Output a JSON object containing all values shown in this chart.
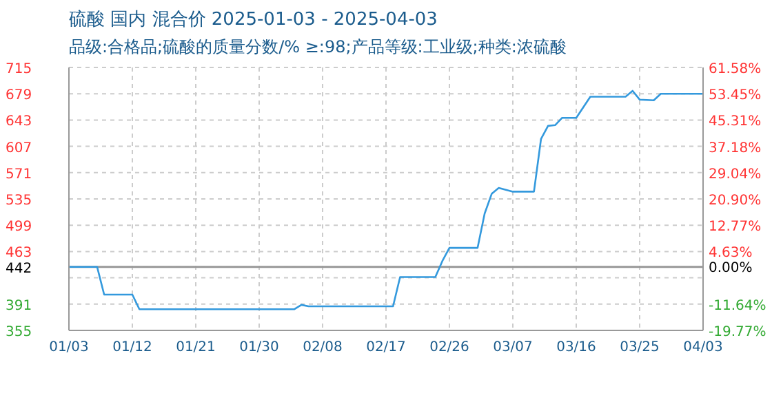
{
  "chart_data": {
    "type": "line",
    "title": "硫酸 国内 混合价 2025-01-03 - 2025-04-03",
    "subtitle": "品级:合格品;硫酸的质量分数/% ≥:98;产品等级:工业级;种类:浓硫酸",
    "x": [
      "2025-01-03",
      "2025-01-07",
      "2025-01-08",
      "2025-01-12",
      "2025-01-13",
      "2025-02-04",
      "2025-02-05",
      "2025-02-06",
      "2025-02-18",
      "2025-02-19",
      "2025-02-24",
      "2025-02-25",
      "2025-02-26",
      "2025-03-02",
      "2025-03-03",
      "2025-03-04",
      "2025-03-05",
      "2025-03-07",
      "2025-03-10",
      "2025-03-11",
      "2025-03-12",
      "2025-03-13",
      "2025-03-14",
      "2025-03-16",
      "2025-03-18",
      "2025-03-23",
      "2025-03-24",
      "2025-03-25",
      "2025-03-27",
      "2025-03-28",
      "2025-04-03"
    ],
    "series": [
      {
        "color": "#3399dd",
        "values": [
          442,
          442,
          404,
          404,
          384,
          384,
          390,
          388,
          388,
          428,
          428,
          450,
          468,
          468,
          515,
          542,
          550,
          545,
          545,
          617,
          635,
          636,
          646,
          646,
          675,
          675,
          683,
          671,
          670,
          679,
          679
        ]
      }
    ],
    "xlim": [
      "2025-01-03",
      "2025-04-03"
    ],
    "xticks": [
      {
        "value": "2025-01-03",
        "label": "01/03"
      },
      {
        "value": "2025-01-12",
        "label": "01/12"
      },
      {
        "value": "2025-01-21",
        "label": "01/21"
      },
      {
        "value": "2025-01-30",
        "label": "01/30"
      },
      {
        "value": "2025-02-08",
        "label": "02/08"
      },
      {
        "value": "2025-02-17",
        "label": "02/17"
      },
      {
        "value": "2025-02-26",
        "label": "02/26"
      },
      {
        "value": "2025-03-07",
        "label": "03/07"
      },
      {
        "value": "2025-03-16",
        "label": "03/16"
      },
      {
        "value": "2025-03-25",
        "label": "03/25"
      },
      {
        "value": "2025-04-03",
        "label": "04/03"
      }
    ],
    "ylim": [
      355,
      715
    ],
    "yticks": [
      355,
      391,
      {
        "value": 427,
        "label": null
      },
      442,
      463,
      499,
      535,
      571,
      607,
      643,
      679,
      715
    ],
    "y2lim": [
      -19.77,
      61.58
    ],
    "y2ticks": [
      {
        "value": -19.77,
        "label": "-19.77%"
      },
      {
        "value": -11.64,
        "label": "-11.64%"
      },
      {
        "value": -3.51,
        "label": null
      },
      {
        "value": 0,
        "label": "0.00%"
      },
      {
        "value": 4.63,
        "label": "4.63%"
      },
      {
        "value": 12.77,
        "label": "12.77%"
      },
      {
        "value": 20.9,
        "label": "20.90%"
      },
      {
        "value": 29.04,
        "label": "29.04%"
      },
      {
        "value": 37.18,
        "label": "37.18%"
      },
      {
        "value": 45.31,
        "label": "45.31%"
      },
      {
        "value": 53.45,
        "label": "53.45%"
      },
      {
        "value": 61.58,
        "label": "61.58%"
      }
    ],
    "ref_lines": [
      {
        "axis": "y",
        "value": 442,
        "color": "#999999"
      }
    ],
    "grid": true,
    "marker": "none",
    "line_style": "solid"
  }
}
